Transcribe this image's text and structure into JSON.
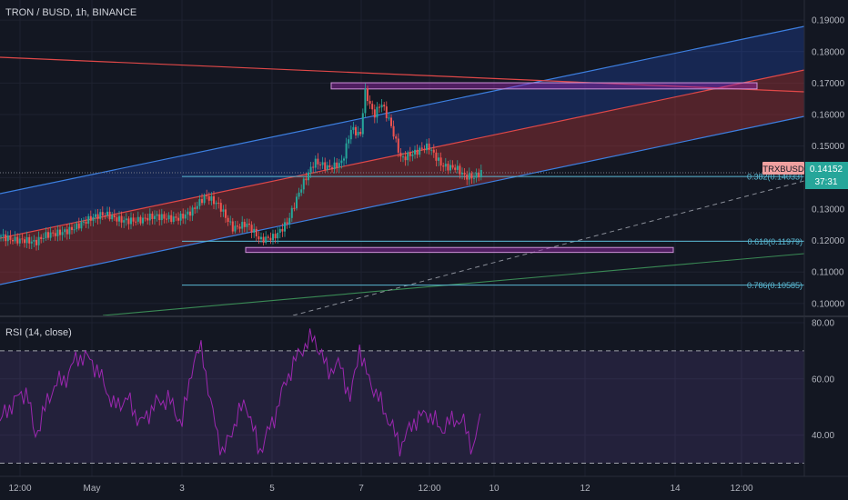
{
  "header": {
    "title": "TRON / BUSD, 1h, BINANCE",
    "rsi_title": "RSI (14, close)"
  },
  "price_badge": {
    "symbol": "TRXBUSD",
    "price": "0.14152",
    "countdown": "37:31"
  },
  "colors": {
    "background": "#131722",
    "up_candle": "#26a69a",
    "down_candle": "#ef5350",
    "blue_channel": "#2962ff",
    "red_channel": "#b2363a",
    "rsi_line": "#9c27b0",
    "fib_line": "#5ab9d3",
    "rect_border": "#ce93d8"
  },
  "chart_data": [
    {
      "type": "candlestick",
      "title": "TRON / BUSD, 1h, BINANCE",
      "x_tick_labels": [
        "12:00",
        "May",
        "3",
        "5",
        "7",
        "12:00",
        "10",
        "12",
        "14",
        "12:00"
      ],
      "y_tick_labels": [
        "0.19000",
        "0.18000",
        "0.17000",
        "0.16000",
        "0.15000",
        "0.14000",
        "0.13000",
        "0.12000",
        "0.11000",
        "0.10000"
      ],
      "ylim": [
        0.0965,
        0.1935
      ],
      "close_path": [
        [
          0,
          0.1215
        ],
        [
          25,
          0.1205
        ],
        [
          38,
          0.1188
        ],
        [
          50,
          0.1212
        ],
        [
          70,
          0.1235
        ],
        [
          95,
          0.126
        ],
        [
          115,
          0.1282
        ],
        [
          140,
          0.1268
        ],
        [
          155,
          0.126
        ],
        [
          170,
          0.1273
        ],
        [
          195,
          0.1278
        ],
        [
          210,
          0.129
        ],
        [
          225,
          0.1335
        ],
        [
          240,
          0.1315
        ],
        [
          255,
          0.1245
        ],
        [
          270,
          0.125
        ],
        [
          285,
          0.1195
        ],
        [
          300,
          0.1215
        ],
        [
          315,
          0.1265
        ],
        [
          330,
          0.1365
        ],
        [
          345,
          0.1445
        ],
        [
          360,
          0.1435
        ],
        [
          375,
          0.1455
        ],
        [
          385,
          0.1555
        ],
        [
          395,
          0.1525
        ],
        [
          400,
          0.1668
        ],
        [
          410,
          0.1595
        ],
        [
          418,
          0.1642
        ],
        [
          428,
          0.158
        ],
        [
          440,
          0.146
        ],
        [
          455,
          0.1472
        ],
        [
          470,
          0.1498
        ],
        [
          485,
          0.1445
        ],
        [
          500,
          0.1432
        ],
        [
          510,
          0.1398
        ],
        [
          520,
          0.1395
        ],
        [
          528,
          0.1415
        ]
      ],
      "last_price": 0.14152,
      "fib_levels": [
        {
          "ratio": "0.382",
          "label": "0.382(0.14033)",
          "value": 0.14033
        },
        {
          "ratio": "0.618",
          "label": "0.618(0.11979)",
          "value": 0.11979
        },
        {
          "ratio": "0.786",
          "label": "0.786(0.10585)",
          "value": 0.10585
        }
      ],
      "annotations": {
        "top_box_value_range": [
          0.1693,
          0.1701
        ],
        "bottom_box_value_range": [
          0.1171,
          0.1178
        ],
        "blue_channel": "upward parallel channel (upper half)",
        "red_channel": "upward parallel channel (lower half)",
        "descending_resistance": "red line",
        "dashed_support": "grey dashed line",
        "green_trendline": "long-term support"
      }
    },
    {
      "type": "line",
      "title": "RSI (14, close)",
      "y_tick_labels": [
        "80.00",
        "60.00",
        "40.00"
      ],
      "ylim": [
        26.6,
        81.6
      ],
      "band": [
        30,
        70
      ],
      "values_path": [
        [
          0,
          45
        ],
        [
          15,
          52
        ],
        [
          30,
          56
        ],
        [
          38,
          39
        ],
        [
          50,
          50
        ],
        [
          60,
          58
        ],
        [
          72,
          60
        ],
        [
          85,
          68
        ],
        [
          100,
          67
        ],
        [
          115,
          58
        ],
        [
          125,
          50
        ],
        [
          140,
          53
        ],
        [
          155,
          44
        ],
        [
          170,
          51
        ],
        [
          185,
          53
        ],
        [
          200,
          44
        ],
        [
          212,
          66
        ],
        [
          222,
          71
        ],
        [
          232,
          50
        ],
        [
          245,
          33
        ],
        [
          260,
          46
        ],
        [
          270,
          52
        ],
        [
          285,
          34
        ],
        [
          300,
          45
        ],
        [
          315,
          60
        ],
        [
          330,
          70
        ],
        [
          345,
          75
        ],
        [
          360,
          63
        ],
        [
          375,
          65
        ],
        [
          385,
          52
        ],
        [
          395,
          72
        ],
        [
          400,
          64
        ],
        [
          410,
          57
        ],
        [
          425,
          47
        ],
        [
          440,
          36
        ],
        [
          455,
          45
        ],
        [
          470,
          48
        ],
        [
          485,
          42
        ],
        [
          500,
          46
        ],
        [
          510,
          44
        ],
        [
          520,
          35
        ],
        [
          528,
          46
        ]
      ]
    }
  ]
}
